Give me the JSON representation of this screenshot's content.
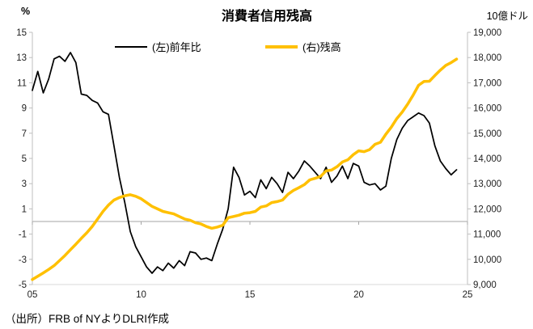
{
  "chart_data": {
    "type": "line",
    "title": "消費者信用残高",
    "source_note": "（出所）FRB of NYよりDLRI作成",
    "left_axis": {
      "unit": "%",
      "min": -5,
      "max": 15,
      "ticks": [
        {
          "value": 15,
          "label": "15"
        },
        {
          "value": 13,
          "label": "13"
        },
        {
          "value": 11,
          "label": "11"
        },
        {
          "value": 9,
          "label": "9"
        },
        {
          "value": 7,
          "label": "7"
        },
        {
          "value": 5,
          "label": "5"
        },
        {
          "value": 3,
          "label": "3"
        },
        {
          "value": 1,
          "label": "1"
        },
        {
          "value": -1,
          "label": "-1"
        },
        {
          "value": -3,
          "label": "-3"
        },
        {
          "value": -5,
          "label": "-5"
        }
      ]
    },
    "right_axis": {
      "unit": "10億ドル",
      "min": 9000,
      "max": 19000,
      "ticks": [
        {
          "value": 19000,
          "label": "19,000"
        },
        {
          "value": 18000,
          "label": "18,000"
        },
        {
          "value": 17000,
          "label": "17,000"
        },
        {
          "value": 16000,
          "label": "16,000"
        },
        {
          "value": 15000,
          "label": "15,000"
        },
        {
          "value": 14000,
          "label": "14,000"
        },
        {
          "value": 13000,
          "label": "13,000"
        },
        {
          "value": 12000,
          "label": "12,000"
        },
        {
          "value": 11000,
          "label": "11,000"
        },
        {
          "value": 10000,
          "label": "10,000"
        },
        {
          "value": 9000,
          "label": "9,000"
        }
      ]
    },
    "x_axis": {
      "min": 2005,
      "max": 2025,
      "start": 2005,
      "step": 0.25,
      "ticks": [
        {
          "value": 2005,
          "label": "05"
        },
        {
          "value": 2010,
          "label": "10"
        },
        {
          "value": 2015,
          "label": "15"
        },
        {
          "value": 2020,
          "label": "20"
        },
        {
          "value": 2025,
          "label": "25"
        }
      ]
    },
    "zero_line_left_value": 0,
    "series": [
      {
        "name": "(左)前年比",
        "axis": "left",
        "color": "#000000",
        "stroke_width": 1.75,
        "values": [
          10.4,
          11.9,
          10.2,
          11.3,
          12.9,
          13.1,
          12.7,
          13.4,
          12.6,
          10.1,
          10.0,
          9.6,
          9.4,
          8.7,
          8.5,
          6.0,
          3.5,
          1.5,
          -0.8,
          -2.0,
          -2.8,
          -3.6,
          -4.1,
          -3.6,
          -3.9,
          -3.3,
          -3.7,
          -3.1,
          -3.5,
          -2.4,
          -2.5,
          -3.0,
          -2.9,
          -3.1,
          -1.8,
          -0.6,
          1.0,
          4.3,
          3.5,
          2.1,
          2.4,
          1.9,
          3.3,
          2.6,
          3.5,
          3.0,
          2.3,
          3.9,
          3.4,
          4.0,
          4.8,
          4.4,
          3.9,
          3.4,
          4.3,
          3.1,
          3.6,
          4.4,
          3.4,
          4.6,
          4.4,
          3.1,
          2.9,
          3.0,
          2.5,
          2.8,
          5.0,
          6.5,
          7.4,
          8.0,
          8.3,
          8.6,
          8.4,
          7.8,
          6.0,
          4.8,
          4.2,
          3.7,
          4.1
        ]
      },
      {
        "name": "(右)残高",
        "axis": "right",
        "color": "#FFC000",
        "stroke_width": 3.5,
        "values": [
          9200,
          9330,
          9460,
          9600,
          9750,
          9950,
          10150,
          10380,
          10600,
          10830,
          11050,
          11300,
          11600,
          11900,
          12150,
          12350,
          12450,
          12520,
          12560,
          12500,
          12400,
          12250,
          12100,
          12000,
          11900,
          11850,
          11800,
          11700,
          11600,
          11550,
          11450,
          11400,
          11300,
          11230,
          11280,
          11350,
          11650,
          11700,
          11750,
          11830,
          11850,
          11900,
          12070,
          12120,
          12250,
          12290,
          12350,
          12580,
          12730,
          12840,
          12960,
          13150,
          13210,
          13290,
          13510,
          13540,
          13670,
          13860,
          13950,
          14150,
          14300,
          14270,
          14350,
          14560,
          14640,
          14960,
          15240,
          15580,
          15840,
          16150,
          16510,
          16900,
          17050,
          17060,
          17290,
          17500,
          17690,
          17800,
          17940
        ]
      }
    ],
    "layout": {
      "grid": "zero-line-only",
      "legend_position": "top-inside",
      "axis_line_color": "#bfbfbf",
      "zero_line_color": "#a6a6a6"
    }
  }
}
